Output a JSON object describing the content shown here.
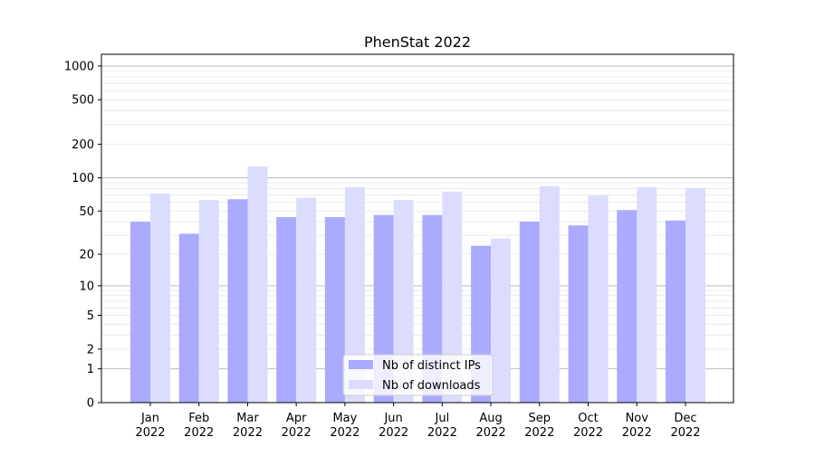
{
  "chart_data": {
    "type": "bar",
    "title": "PhenStat 2022",
    "xlabel": "",
    "ylabel": "",
    "yscale": "log10(1+y)",
    "ylim": [
      0,
      1200
    ],
    "yticks": [
      0,
      1,
      2,
      5,
      10,
      20,
      50,
      100,
      200,
      500,
      1000
    ],
    "categories": [
      [
        "Jan",
        "2022"
      ],
      [
        "Feb",
        "2022"
      ],
      [
        "Mar",
        "2022"
      ],
      [
        "Apr",
        "2022"
      ],
      [
        "May",
        "2022"
      ],
      [
        "Jun",
        "2022"
      ],
      [
        "Jul",
        "2022"
      ],
      [
        "Aug",
        "2022"
      ],
      [
        "Sep",
        "2022"
      ],
      [
        "Oct",
        "2022"
      ],
      [
        "Nov",
        "2022"
      ],
      [
        "Dec",
        "2022"
      ]
    ],
    "series": [
      {
        "name": "Nb of distinct IPs",
        "color": "#aaaaff",
        "values": [
          40,
          31,
          64,
          44,
          44,
          46,
          46,
          24,
          40,
          37,
          51,
          41
        ]
      },
      {
        "name": "Nb of downloads",
        "color": "#dcdcff",
        "values": [
          72,
          63,
          126,
          66,
          82,
          63,
          75,
          28,
          84,
          69,
          82,
          81
        ]
      }
    ],
    "legend_position": "lower-center",
    "grid": true
  }
}
